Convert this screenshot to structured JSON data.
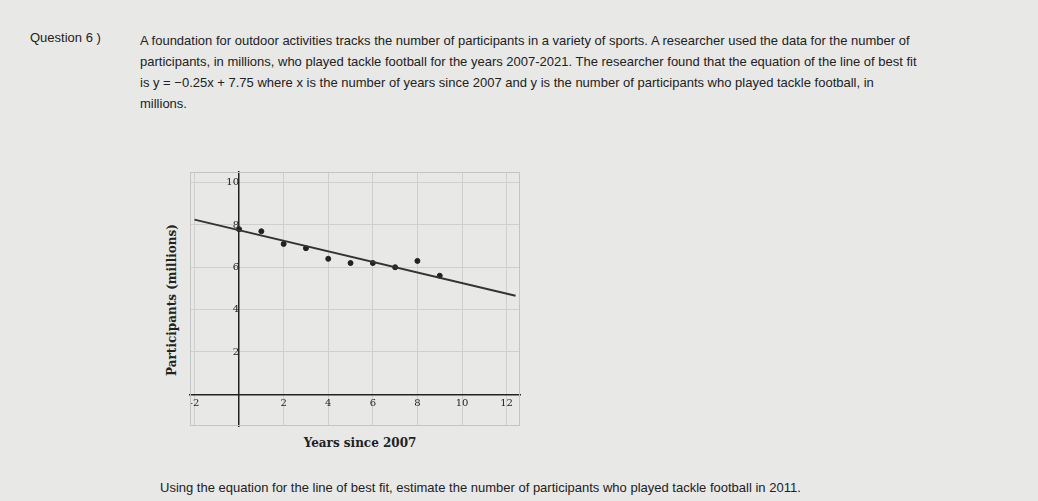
{
  "question": {
    "number": "Question 6 )",
    "lines": [
      "A foundation for outdoor activities tracks the number of participants in a variety of sports. A researcher used the data for the number of",
      "participants, in millions, who played tackle football for the years 2007-2021. The researcher found that the equation of the line of best fit",
      "is y = −0.25x + 7.75 where x is the number of years since 2007 and y is the number of participants who played tackle football, in",
      "millions."
    ],
    "prompt": "Using the equation for the line of best fit, estimate the number of participants who played tackle football in 2011."
  },
  "chart_data": {
    "type": "scatter",
    "x_label": "Years since 2007",
    "y_label": "Participants (millions)",
    "x": [
      0,
      1,
      2,
      3,
      4,
      5,
      6,
      7,
      8,
      9
    ],
    "values": [
      7.8,
      7.7,
      7.1,
      6.9,
      6.4,
      6.2,
      6.2,
      6.0,
      6.3,
      5.6
    ],
    "color": "#222222",
    "marker": "circle",
    "grid": true,
    "xlim": [
      -2.2,
      12.6
    ],
    "ylim": [
      -1.5,
      10.5
    ],
    "xticks": [
      -2,
      2,
      4,
      6,
      8,
      10,
      12
    ],
    "yticks": [
      2,
      4,
      6,
      8,
      10
    ],
    "line_of_best_fit": {
      "x": [
        -2,
        12.4
      ],
      "values": [
        8.25,
        4.65
      ],
      "color": "#333333"
    }
  }
}
